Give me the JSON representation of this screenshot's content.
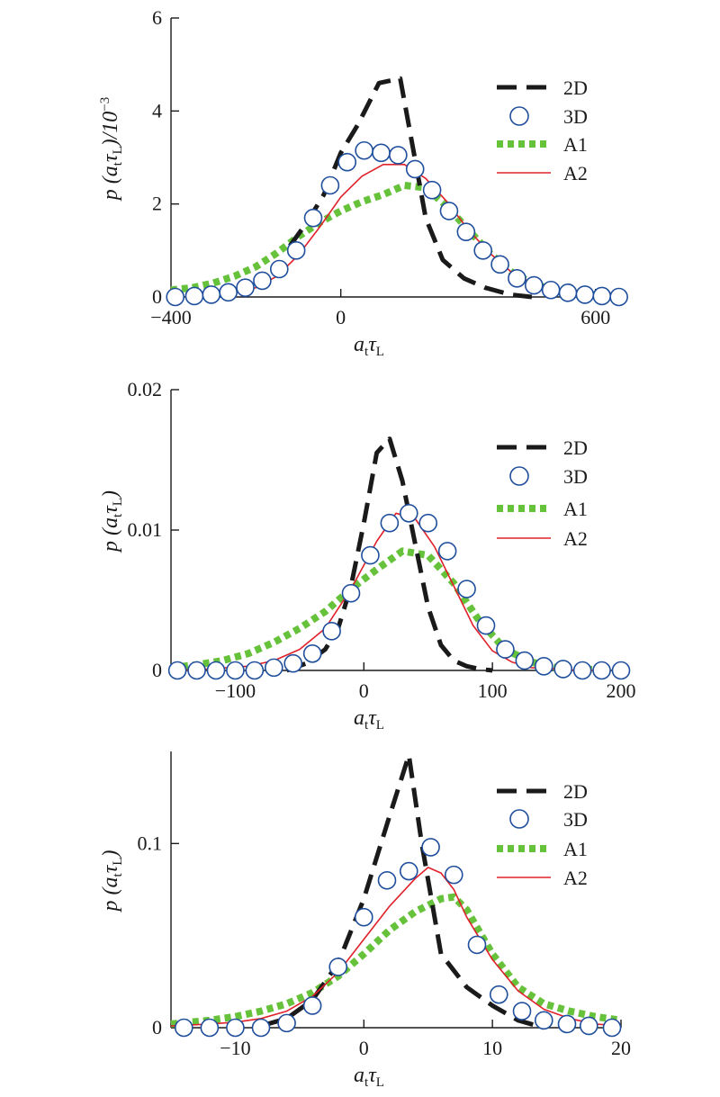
{
  "colors": {
    "2D": "#1a1a1a",
    "3D": "#1f4e9c",
    "A1": "#66c23a",
    "A2": "#e0202a",
    "axis": "#1a1a1a"
  },
  "legend_entries": [
    "2D",
    "3D",
    "A1",
    "A2"
  ],
  "chart_data": [
    {
      "type": "line",
      "xlabel": {
        "main": "a",
        "sub1": "t",
        "mid": "τ",
        "sub2": "L"
      },
      "ylabel": {
        "pre": "p (a",
        "sub1": "t",
        "mid": "τ",
        "sub2": "L",
        "post": ")/10",
        "sup": "−3"
      },
      "xlim": [
        -400,
        660
      ],
      "ylim": [
        0,
        6
      ],
      "xticks": [
        {
          "v": -400,
          "label": "−400"
        },
        {
          "v": 0,
          "label": "0"
        },
        {
          "v": 600,
          "label": "600"
        }
      ],
      "yticks": [
        {
          "v": 0,
          "label": "0"
        },
        {
          "v": 2,
          "label": "2"
        },
        {
          "v": 4,
          "label": "4"
        },
        {
          "v": 6,
          "label": "6"
        }
      ],
      "legend": "top-right",
      "grid": false,
      "series": [
        {
          "name": "2D",
          "style": "dash",
          "x": [
            -120,
            -80,
            -40,
            0,
            40,
            90,
            140,
            170,
            200,
            240,
            290,
            340,
            400,
            450
          ],
          "y": [
            1.1,
            1.6,
            2.2,
            3.1,
            3.7,
            4.6,
            4.7,
            3.2,
            1.7,
            0.8,
            0.4,
            0.2,
            0.05,
            0.0
          ]
        },
        {
          "name": "3D",
          "style": "circle",
          "x": [
            -390,
            -345,
            -305,
            -265,
            -225,
            -185,
            -145,
            -105,
            -65,
            -25,
            15,
            55,
            95,
            135,
            175,
            215,
            255,
            295,
            335,
            375,
            415,
            455,
            495,
            535,
            575,
            615,
            655
          ],
          "y": [
            0.0,
            0.02,
            0.05,
            0.1,
            0.2,
            0.35,
            0.6,
            1.0,
            1.7,
            2.4,
            2.9,
            3.15,
            3.1,
            3.05,
            2.75,
            2.3,
            1.85,
            1.4,
            1.0,
            0.7,
            0.4,
            0.25,
            0.15,
            0.09,
            0.05,
            0.02,
            0.0
          ]
        },
        {
          "name": "A1",
          "style": "dot",
          "x": [
            -400,
            -350,
            -300,
            -250,
            -200,
            -150,
            -100,
            -50,
            0,
            50,
            100,
            150,
            200,
            250,
            300,
            350,
            400,
            450,
            500,
            550,
            600,
            650
          ],
          "y": [
            0.15,
            0.2,
            0.3,
            0.45,
            0.65,
            0.95,
            1.3,
            1.6,
            1.85,
            2.05,
            2.2,
            2.4,
            2.35,
            1.95,
            1.45,
            0.95,
            0.55,
            0.3,
            0.15,
            0.08,
            0.04,
            0.02
          ]
        },
        {
          "name": "A2",
          "style": "line",
          "x": [
            -300,
            -250,
            -200,
            -150,
            -100,
            -50,
            0,
            50,
            100,
            150,
            200,
            250,
            300,
            350,
            400,
            450,
            500,
            550,
            600,
            650
          ],
          "y": [
            0.05,
            0.1,
            0.2,
            0.45,
            0.9,
            1.5,
            2.15,
            2.6,
            2.85,
            2.85,
            2.55,
            2.05,
            1.45,
            0.95,
            0.55,
            0.3,
            0.15,
            0.07,
            0.03,
            0.01
          ]
        }
      ]
    },
    {
      "type": "line",
      "xlabel": {
        "main": "a",
        "sub1": "t",
        "mid": "τ",
        "sub2": "L"
      },
      "ylabel": {
        "pre": "p (a",
        "sub1": "t",
        "mid": "τ",
        "sub2": "L",
        "post": ")",
        "sup": ""
      },
      "xlim": [
        -150,
        200
      ],
      "ylim": [
        0,
        0.02
      ],
      "xticks": [
        {
          "v": -100,
          "label": "−100"
        },
        {
          "v": 0,
          "label": "0"
        },
        {
          "v": 100,
          "label": "100"
        },
        {
          "v": 200,
          "label": "200"
        }
      ],
      "yticks": [
        {
          "v": 0,
          "label": "0"
        },
        {
          "v": 0.01,
          "label": "0.01"
        },
        {
          "v": 0.02,
          "label": "0.02"
        }
      ],
      "legend": "top-right",
      "grid": false,
      "series": [
        {
          "name": "2D",
          "style": "dash",
          "x": [
            -60,
            -45,
            -30,
            -20,
            -10,
            0,
            10,
            20,
            30,
            40,
            50,
            60,
            70,
            80,
            90,
            100
          ],
          "y": [
            0.0,
            0.0005,
            0.0015,
            0.003,
            0.006,
            0.0105,
            0.0155,
            0.0165,
            0.0135,
            0.009,
            0.0045,
            0.0018,
            0.0007,
            0.0003,
            0.0001,
            0.0
          ]
        },
        {
          "name": "3D",
          "style": "circle",
          "x": [
            -145,
            -130,
            -115,
            -100,
            -85,
            -70,
            -55,
            -40,
            -25,
            -10,
            5,
            20,
            35,
            50,
            65,
            80,
            95,
            110,
            125,
            140,
            155,
            170,
            185,
            200
          ],
          "y": [
            0.0,
            0.0,
            0.0,
            0.0,
            0.0,
            0.0002,
            0.0005,
            0.0012,
            0.0028,
            0.0055,
            0.0082,
            0.0105,
            0.0112,
            0.0105,
            0.0085,
            0.0058,
            0.0032,
            0.0015,
            0.0007,
            0.0003,
            0.0001,
            0.0,
            0.0,
            0.0
          ]
        },
        {
          "name": "A1",
          "style": "dot",
          "x": [
            -150,
            -130,
            -110,
            -90,
            -70,
            -50,
            -30,
            -10,
            10,
            30,
            50,
            70,
            90,
            110,
            130,
            150,
            170,
            190
          ],
          "y": [
            0.0002,
            0.0004,
            0.0007,
            0.0012,
            0.002,
            0.003,
            0.0042,
            0.0058,
            0.0072,
            0.0085,
            0.0082,
            0.0062,
            0.0035,
            0.0015,
            0.0006,
            0.0002,
            0.0001,
            0.0
          ]
        },
        {
          "name": "A2",
          "style": "line",
          "x": [
            -150,
            -120,
            -90,
            -70,
            -50,
            -30,
            -10,
            10,
            25,
            40,
            55,
            70,
            85,
            100,
            115,
            130,
            150,
            170,
            190
          ],
          "y": [
            0.0,
            0.0001,
            0.0003,
            0.0007,
            0.0015,
            0.003,
            0.0058,
            0.0092,
            0.0112,
            0.0108,
            0.0088,
            0.006,
            0.0032,
            0.0014,
            0.0006,
            0.0002,
            0.0001,
            0.0,
            0.0
          ]
        }
      ]
    },
    {
      "type": "line",
      "xlabel": {
        "main": "a",
        "sub1": "t",
        "mid": "τ",
        "sub2": "L"
      },
      "ylabel": {
        "pre": "p (a",
        "sub1": "t",
        "mid": "τ",
        "sub2": "L",
        "post": ")",
        "sup": ""
      },
      "xlim": [
        -15,
        20
      ],
      "ylim": [
        0,
        0.15
      ],
      "xticks": [
        {
          "v": -10,
          "label": "−10"
        },
        {
          "v": 0,
          "label": "0"
        },
        {
          "v": 10,
          "label": "10"
        },
        {
          "v": 20,
          "label": "20"
        }
      ],
      "yticks": [
        {
          "v": 0,
          "label": "0"
        },
        {
          "v": 0.1,
          "label": "0.1"
        }
      ],
      "legend": "top-right",
      "grid": false,
      "series": [
        {
          "name": "2D",
          "style": "dash",
          "x": [
            -8,
            -6,
            -4,
            -2,
            0,
            2,
            3.5,
            4.5,
            6,
            8,
            10,
            12,
            14
          ],
          "y": [
            0.001,
            0.005,
            0.015,
            0.035,
            0.07,
            0.115,
            0.148,
            0.1,
            0.04,
            0.022,
            0.012,
            0.004,
            0.0
          ]
        },
        {
          "name": "3D",
          "style": "circle",
          "x": [
            -14,
            -12,
            -10,
            -8,
            -6,
            -4,
            -2,
            0,
            1.8,
            3.5,
            5.2,
            7,
            8.8,
            10.5,
            12.3,
            14,
            15.8,
            17.5,
            19.3
          ],
          "y": [
            0.0,
            0.0,
            0.0,
            0.0,
            0.0025,
            0.012,
            0.033,
            0.06,
            0.08,
            0.085,
            0.098,
            0.083,
            0.045,
            0.018,
            0.009,
            0.004,
            0.002,
            0.001,
            0.0
          ]
        },
        {
          "name": "A1",
          "style": "dot",
          "x": [
            -15,
            -12,
            -10,
            -8,
            -6,
            -4,
            -2,
            0,
            2,
            4,
            6,
            7,
            8,
            10,
            12,
            14,
            16,
            18,
            20
          ],
          "y": [
            0.002,
            0.004,
            0.006,
            0.009,
            0.013,
            0.019,
            0.028,
            0.04,
            0.053,
            0.063,
            0.07,
            0.071,
            0.064,
            0.04,
            0.022,
            0.013,
            0.009,
            0.006,
            0.004
          ]
        },
        {
          "name": "A2",
          "style": "line",
          "x": [
            -15,
            -12,
            -10,
            -8,
            -6,
            -4,
            -2,
            0,
            2,
            4,
            5,
            6,
            7,
            8,
            10,
            12,
            14,
            16,
            18,
            20
          ],
          "y": [
            0.001,
            0.002,
            0.003,
            0.005,
            0.009,
            0.017,
            0.03,
            0.048,
            0.066,
            0.081,
            0.087,
            0.084,
            0.075,
            0.06,
            0.037,
            0.02,
            0.01,
            0.005,
            0.002,
            0.001
          ]
        }
      ]
    }
  ]
}
